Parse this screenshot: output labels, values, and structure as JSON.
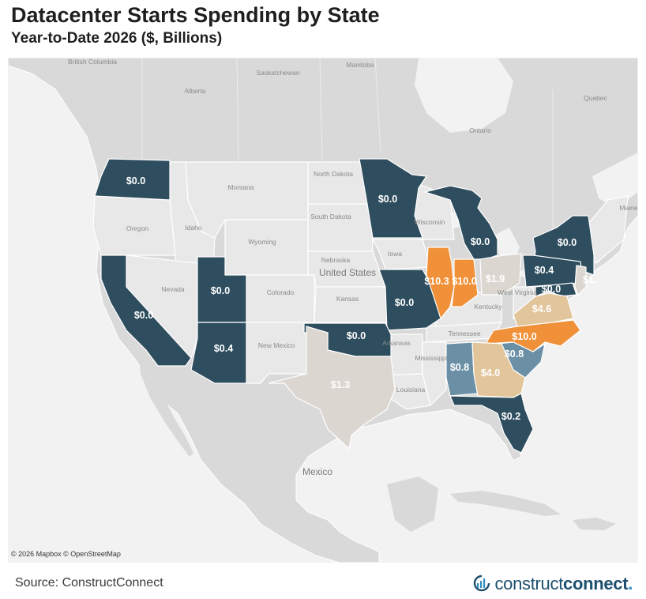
{
  "header": {
    "title": "Datacenter Starts Spending by State",
    "subtitle": "Year-to-Date 2026 ($, Billions)"
  },
  "colors": {
    "ocean": "#f2f2f2",
    "land": "#d9d9d9",
    "no_data_state": "#e8e8e8",
    "tier_zero": "#2e4d5e",
    "tier_low": "#6b90a6",
    "tier_mid": "#dcd6d0",
    "tier_mid_high": "#e3c59c",
    "tier_high": "#f0913a"
  },
  "map": {
    "attribution": "© 2026 Mapbox © OpenStreetMap",
    "geo_labels": {
      "british_columbia": "British Columbia",
      "alberta": "Alberta",
      "saskatchewan": "Saskatchewan",
      "manitoba": "Manitoba",
      "ontario": "Ontario",
      "quebec": "Quebec",
      "maine": "Maine",
      "montana": "Montana",
      "north_dakota": "North Dakota",
      "south_dakota": "South Dakota",
      "oregon": "Oregon",
      "idaho": "Idaho",
      "wyoming": "Wyoming",
      "nevada": "Nevada",
      "colorado": "Colorado",
      "nebraska": "Nebraska",
      "kansas": "Kansas",
      "iowa": "Iowa",
      "wisconsin": "Wisconsin",
      "new_mexico": "New Mexico",
      "arkansas": "Arkansas",
      "mississippi": "Mississippi",
      "tennessee": "Tennessee",
      "kentucky": "Kentucky",
      "west_virginia": "West Virginia",
      "louisiana": "Louisiana",
      "united_states": "United States",
      "mexico": "Mexico"
    },
    "states": [
      {
        "state": "Washington",
        "value": "$0.0",
        "tier": "tier_zero"
      },
      {
        "state": "California",
        "value": "$0.0",
        "tier": "tier_zero"
      },
      {
        "state": "Utah",
        "value": "$0.0",
        "tier": "tier_zero"
      },
      {
        "state": "Arizona",
        "value": "$0.4",
        "tier": "tier_zero"
      },
      {
        "state": "Minnesota",
        "value": "$0.0",
        "tier": "tier_zero"
      },
      {
        "state": "Michigan",
        "value": "$0.0",
        "tier": "tier_zero"
      },
      {
        "state": "Missouri",
        "value": "$0.0",
        "tier": "tier_zero"
      },
      {
        "state": "Oklahoma",
        "value": "$0.0",
        "tier": "tier_zero"
      },
      {
        "state": "Texas",
        "value": "$1.3",
        "tier": "tier_mid"
      },
      {
        "state": "Illinois",
        "value": "$10.3",
        "tier": "tier_high"
      },
      {
        "state": "Indiana",
        "value": "$10.0",
        "tier": "tier_high"
      },
      {
        "state": "Ohio",
        "value": "$1.9",
        "tier": "tier_mid"
      },
      {
        "state": "New York",
        "value": "$0.0",
        "tier": "tier_zero"
      },
      {
        "state": "Pennsylvania",
        "value": "$0.4",
        "tier": "tier_zero"
      },
      {
        "state": "Maryland",
        "value": "$0.0",
        "tier": "tier_zero"
      },
      {
        "state": "New Jersey",
        "value": "$1.",
        "tier": "tier_mid"
      },
      {
        "state": "Virginia",
        "value": "$4.6",
        "tier": "tier_mid_high"
      },
      {
        "state": "North Carolina",
        "value": "$10.0",
        "tier": "tier_high"
      },
      {
        "state": "South Carolina",
        "value": "$0.8",
        "tier": "tier_low"
      },
      {
        "state": "Alabama",
        "value": "$0.8",
        "tier": "tier_low"
      },
      {
        "state": "Georgia",
        "value": "$4.0",
        "tier": "tier_mid_high"
      },
      {
        "state": "Florida",
        "value": "$0.2",
        "tier": "tier_zero"
      }
    ]
  },
  "footer": {
    "source": "Source: ConstructConnect",
    "logo_prefix": "construct",
    "logo_suffix": "connect",
    "logo_mark": "."
  }
}
